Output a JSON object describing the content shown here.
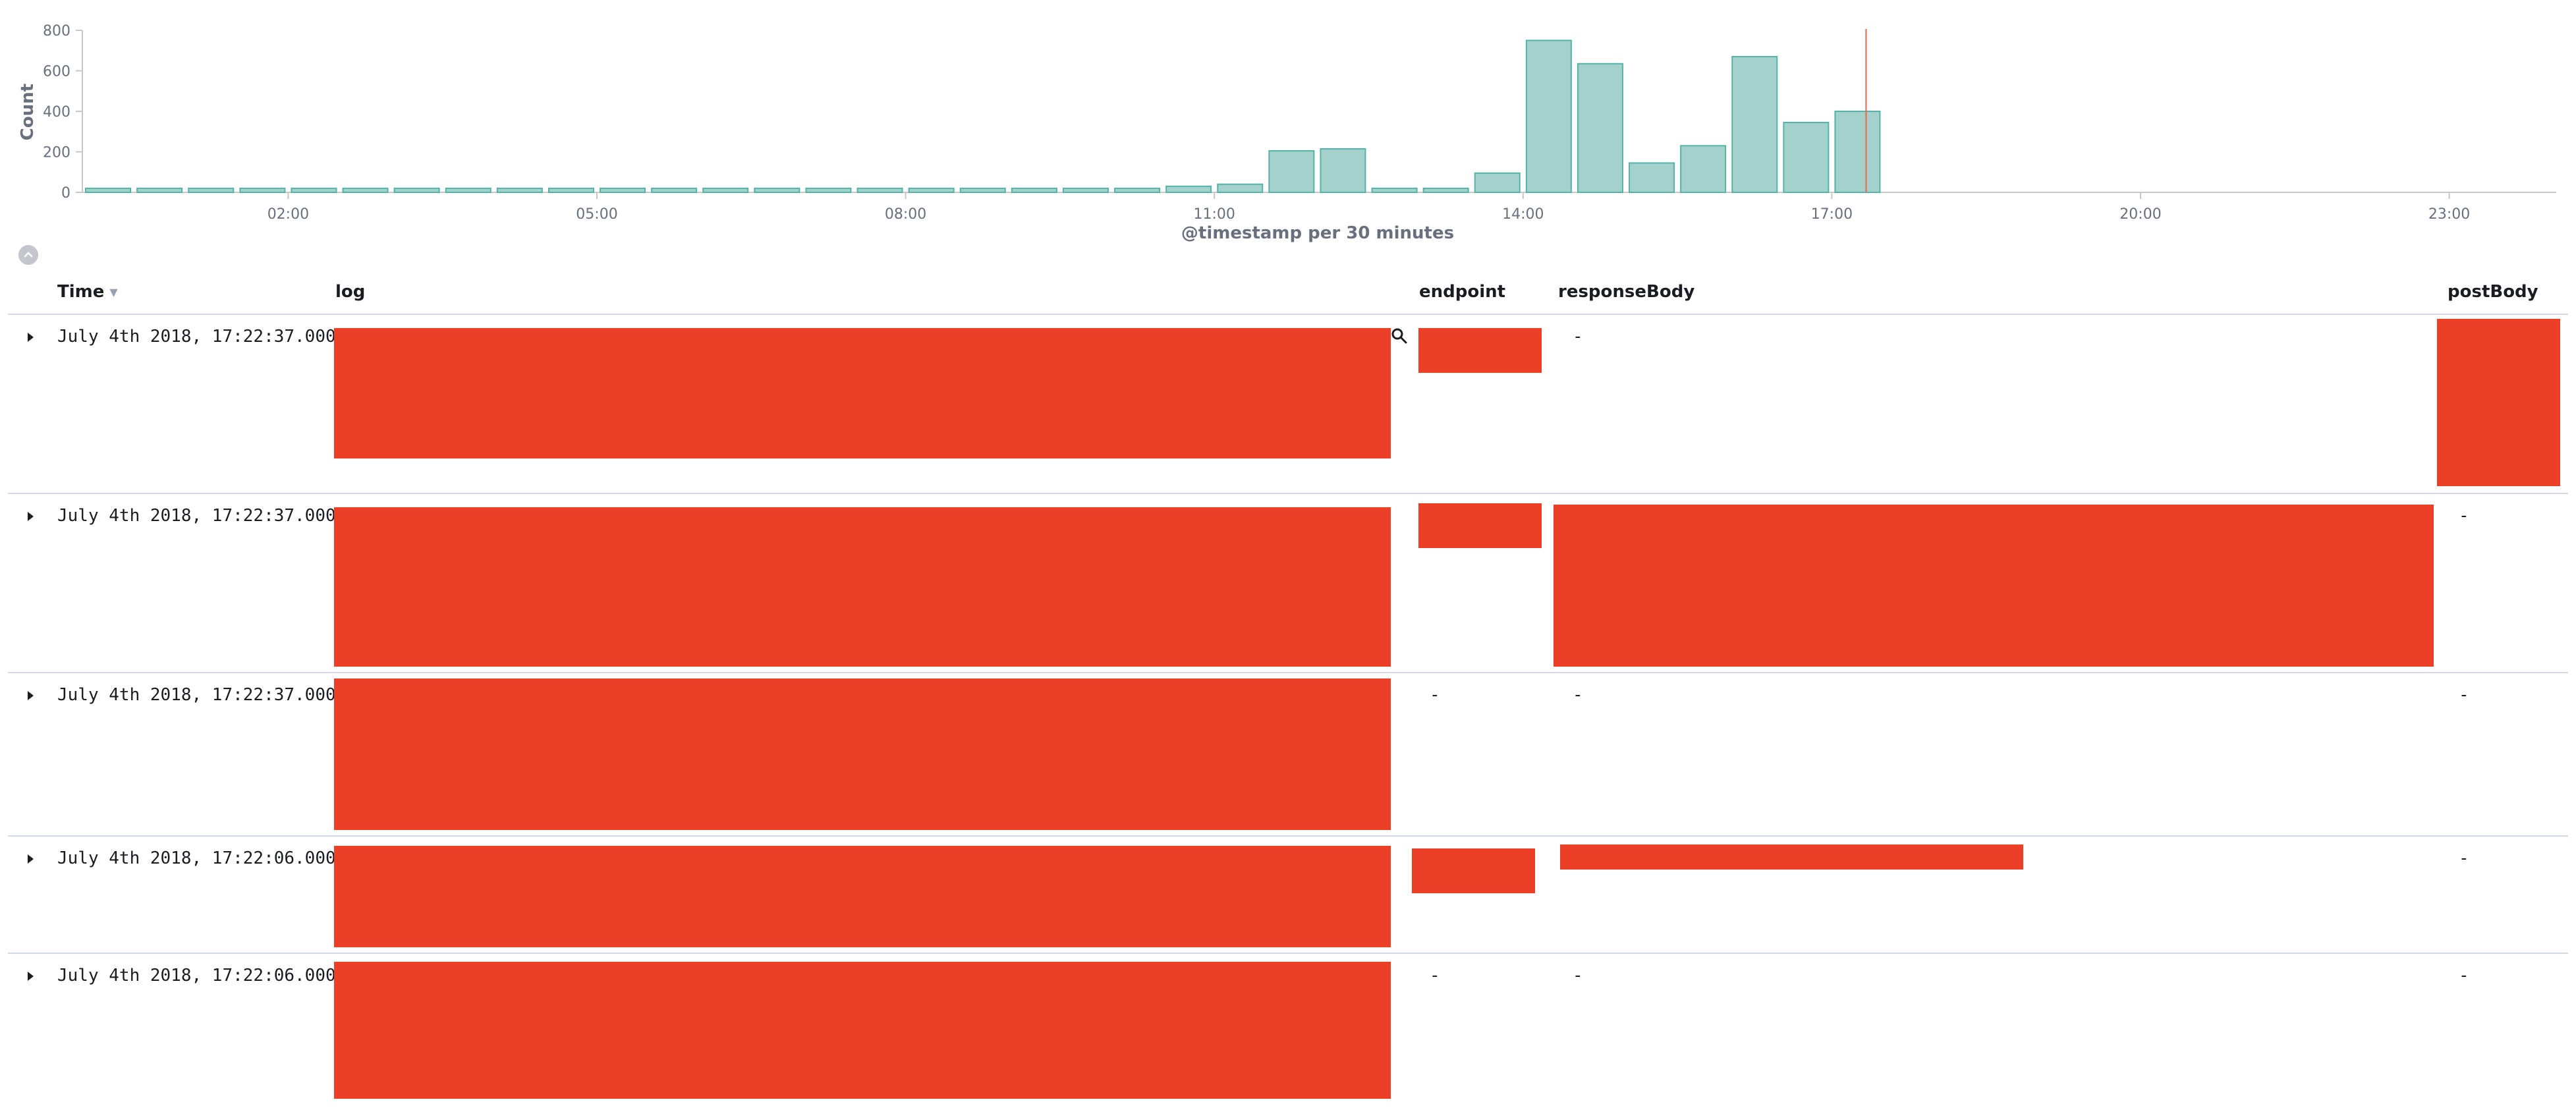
{
  "histogram": {
    "xlabel": "@timestamp per 30 minutes",
    "ylabel": "Count",
    "colors": {
      "bar_fill": "#a5d1cd",
      "bar_stroke": "#54b3a7",
      "now_line": "#e7664c"
    }
  },
  "chart_data": {
    "type": "bar",
    "title": "",
    "xlabel": "@timestamp per 30 minutes",
    "ylabel": "Count",
    "ylim": [
      0,
      800
    ],
    "y_ticks": [
      "0",
      "200",
      "400",
      "600",
      "800"
    ],
    "x_ticks": [
      "02:00",
      "05:00",
      "08:00",
      "11:00",
      "14:00",
      "17:00",
      "20:00",
      "23:00"
    ],
    "now_marker": "17:20",
    "categories": [
      "00:00",
      "00:30",
      "01:00",
      "01:30",
      "02:00",
      "02:30",
      "03:00",
      "03:30",
      "04:00",
      "04:30",
      "05:00",
      "05:30",
      "06:00",
      "06:30",
      "07:00",
      "07:30",
      "08:00",
      "08:30",
      "09:00",
      "09:30",
      "10:00",
      "10:30",
      "11:00",
      "11:30",
      "12:00",
      "12:30",
      "13:00",
      "13:30",
      "14:00",
      "14:30",
      "15:00",
      "15:30",
      "16:00",
      "16:30",
      "17:00"
    ],
    "values": [
      20,
      20,
      20,
      20,
      20,
      20,
      20,
      20,
      20,
      20,
      20,
      20,
      20,
      20,
      20,
      20,
      20,
      20,
      20,
      20,
      20,
      30,
      40,
      205,
      215,
      20,
      20,
      95,
      750,
      635,
      145,
      230,
      670,
      345,
      400
    ],
    "values_tail_note": ""
  },
  "table": {
    "columns": {
      "time": "Time",
      "log": "log",
      "endpoint": "endpoint",
      "response_body": "responseBody",
      "post_body": "postBody"
    },
    "empty_value": "-",
    "rows": [
      {
        "time": "July 4th 2018, 17:22:37.000"
      },
      {
        "time": "July 4th 2018, 17:22:37.000"
      },
      {
        "time": "July 4th 2018, 17:22:37.000"
      },
      {
        "time": "July 4th 2018, 17:22:06.000"
      },
      {
        "time": "July 4th 2018, 17:22:06.000"
      }
    ]
  },
  "icons": {
    "collapse": "chevron-up-icon",
    "sort": "sort-down-icon",
    "expand": "arrow-right-icon",
    "magnify": "magnify-icon"
  }
}
